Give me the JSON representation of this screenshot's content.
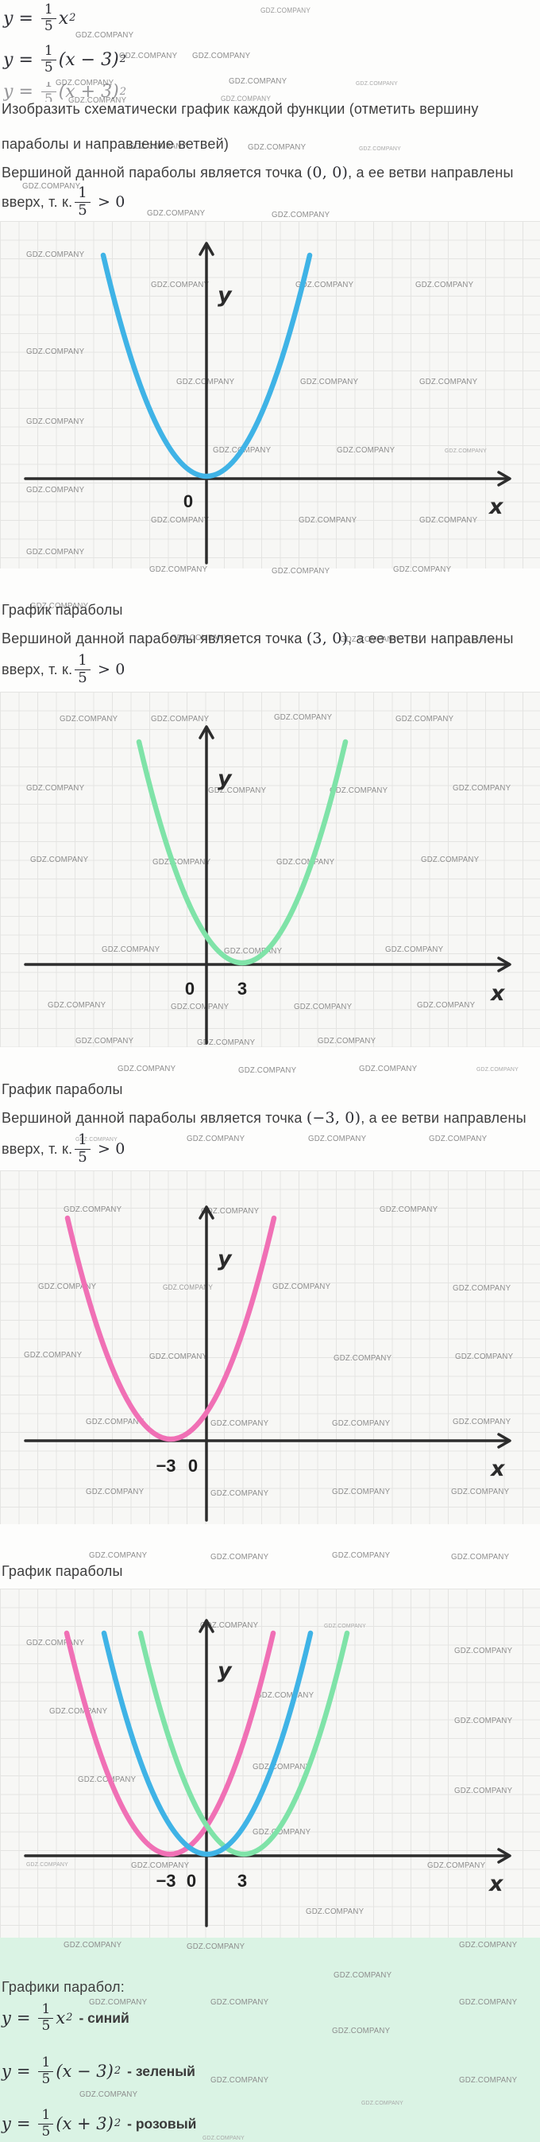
{
  "watermark_text": "GDZ.COMPANY",
  "colors": {
    "blue": "#3fb3e6",
    "green": "#7fe3a8",
    "pink": "#f070b5",
    "axis": "#2d2d2d",
    "grid_line": "#e4e4e2",
    "grid_bg": "#f7f7f5",
    "legend_bg": "#daf3e4",
    "text": "#3f3f3f",
    "watermark": "#8d8d8d"
  },
  "intro": {
    "formulas": [
      {
        "lhs": "y",
        "eq": "=",
        "num": "1",
        "den": "5",
        "arg": "x",
        "power": "2"
      },
      {
        "lhs": "y",
        "eq": "=",
        "num": "1",
        "den": "5",
        "arg": "(x − 3)",
        "power": "2"
      },
      {
        "lhs": "y",
        "eq": "=",
        "num": "1",
        "den": "5",
        "arg": "(x + 3)",
        "power": "2"
      }
    ],
    "task_line1": "Изобразить схематически график каждой функции (отметить вершину",
    "task_line2": "параболы и направление ветвей)"
  },
  "sections": [
    {
      "heading": "",
      "sentence_pre": "Вершиной данной параболы является точка ",
      "sentence_point": "(0, 0)",
      "sentence_post": ", а ее ветви направлены",
      "dir_pre": "вверх, т. к. ",
      "dir_num": "1",
      "dir_den": "5",
      "dir_post": "> 0",
      "graph": {
        "y_label": "y",
        "x_label": "x",
        "ticks": {
          "origin": "0"
        }
      }
    },
    {
      "heading": "График параболы",
      "sentence_pre": "Вершиной данной параболы является точка ",
      "sentence_point": "(3, 0)",
      "sentence_post": ", а ее ветви направлены",
      "dir_pre": "вверх, т. к. ",
      "dir_num": "1",
      "dir_den": "5",
      "dir_post": "> 0",
      "graph": {
        "y_label": "y",
        "x_label": "x",
        "ticks": {
          "origin": "0",
          "vertex": "3"
        }
      }
    },
    {
      "heading": "График параболы",
      "sentence_pre": "Вершиной данной параболы является точка ",
      "sentence_point": "(−3, 0)",
      "sentence_post": ", а ее ветви направлены",
      "dir_pre": "вверх, т. к. ",
      "dir_num": "1",
      "dir_den": "5",
      "dir_post": "> 0",
      "graph": {
        "y_label": "y",
        "x_label": "x",
        "ticks": {
          "vertex": "−3",
          "origin": "0"
        }
      }
    },
    {
      "heading": "График параболы",
      "graph": {
        "y_label": "y",
        "x_label": "x",
        "ticks": {
          "minus3": "−3",
          "origin": "0",
          "plus3": "3"
        }
      }
    }
  ],
  "legend": {
    "title": "Графики парабол:",
    "items": [
      {
        "lhs": "y",
        "eq": "=",
        "num": "1",
        "den": "5",
        "arg": "x",
        "power": "2",
        "label": "- синий"
      },
      {
        "lhs": "y",
        "eq": "=",
        "num": "1",
        "den": "5",
        "arg": "(x − 3)",
        "power": "2",
        "label": "- зеленый"
      },
      {
        "lhs": "y",
        "eq": "=",
        "num": "1",
        "den": "5",
        "arg": "(x + 3)",
        "power": "2",
        "label": "- розовый"
      }
    ]
  },
  "chart_data": [
    {
      "type": "line",
      "title": "y = 1/5·x²",
      "color": "#3fb3e6",
      "vertex": [
        0,
        0
      ],
      "opens": "up",
      "xlabel": "x",
      "ylabel": "y",
      "x_tick_labels": [
        "0"
      ],
      "grid": true,
      "x": [
        -5,
        -4,
        -3,
        -2,
        -1,
        0,
        1,
        2,
        3,
        4,
        5
      ],
      "y": [
        5,
        3.2,
        1.8,
        0.8,
        0.2,
        0,
        0.2,
        0.8,
        1.8,
        3.2,
        5
      ]
    },
    {
      "type": "line",
      "title": "y = 1/5·(x − 3)²",
      "color": "#7fe3a8",
      "vertex": [
        3,
        0
      ],
      "opens": "up",
      "xlabel": "x",
      "ylabel": "y",
      "x_tick_labels": [
        "0",
        "3"
      ],
      "grid": true,
      "x": [
        -2,
        -1,
        0,
        1,
        2,
        3,
        4,
        5,
        6,
        7,
        8
      ],
      "y": [
        5,
        3.2,
        1.8,
        0.8,
        0.2,
        0,
        0.2,
        0.8,
        1.8,
        3.2,
        5
      ]
    },
    {
      "type": "line",
      "title": "y = 1/5·(x + 3)²",
      "color": "#f070b5",
      "vertex": [
        -3,
        0
      ],
      "opens": "up",
      "xlabel": "x",
      "ylabel": "y",
      "x_tick_labels": [
        "−3",
        "0"
      ],
      "grid": true,
      "x": [
        -8,
        -7,
        -6,
        -5,
        -4,
        -3,
        -2,
        -1,
        0,
        1,
        2
      ],
      "y": [
        5,
        3.2,
        1.8,
        0.8,
        0.2,
        0,
        0.2,
        0.8,
        1.8,
        3.2,
        5
      ]
    },
    {
      "type": "line",
      "title": "Графики парабол (все три)",
      "xlabel": "x",
      "ylabel": "y",
      "x_tick_labels": [
        "−3",
        "0",
        "3"
      ],
      "grid": true,
      "series": [
        {
          "name": "y = 1/5·x² (синий)",
          "color": "#3fb3e6",
          "vertex": [
            0,
            0
          ],
          "opens": "up"
        },
        {
          "name": "y = 1/5·(x − 3)² (зеленый)",
          "color": "#7fe3a8",
          "vertex": [
            3,
            0
          ],
          "opens": "up"
        },
        {
          "name": "y = 1/5·(x + 3)² (розовый)",
          "color": "#f070b5",
          "vertex": [
            -3,
            0
          ],
          "opens": "up"
        }
      ]
    }
  ]
}
